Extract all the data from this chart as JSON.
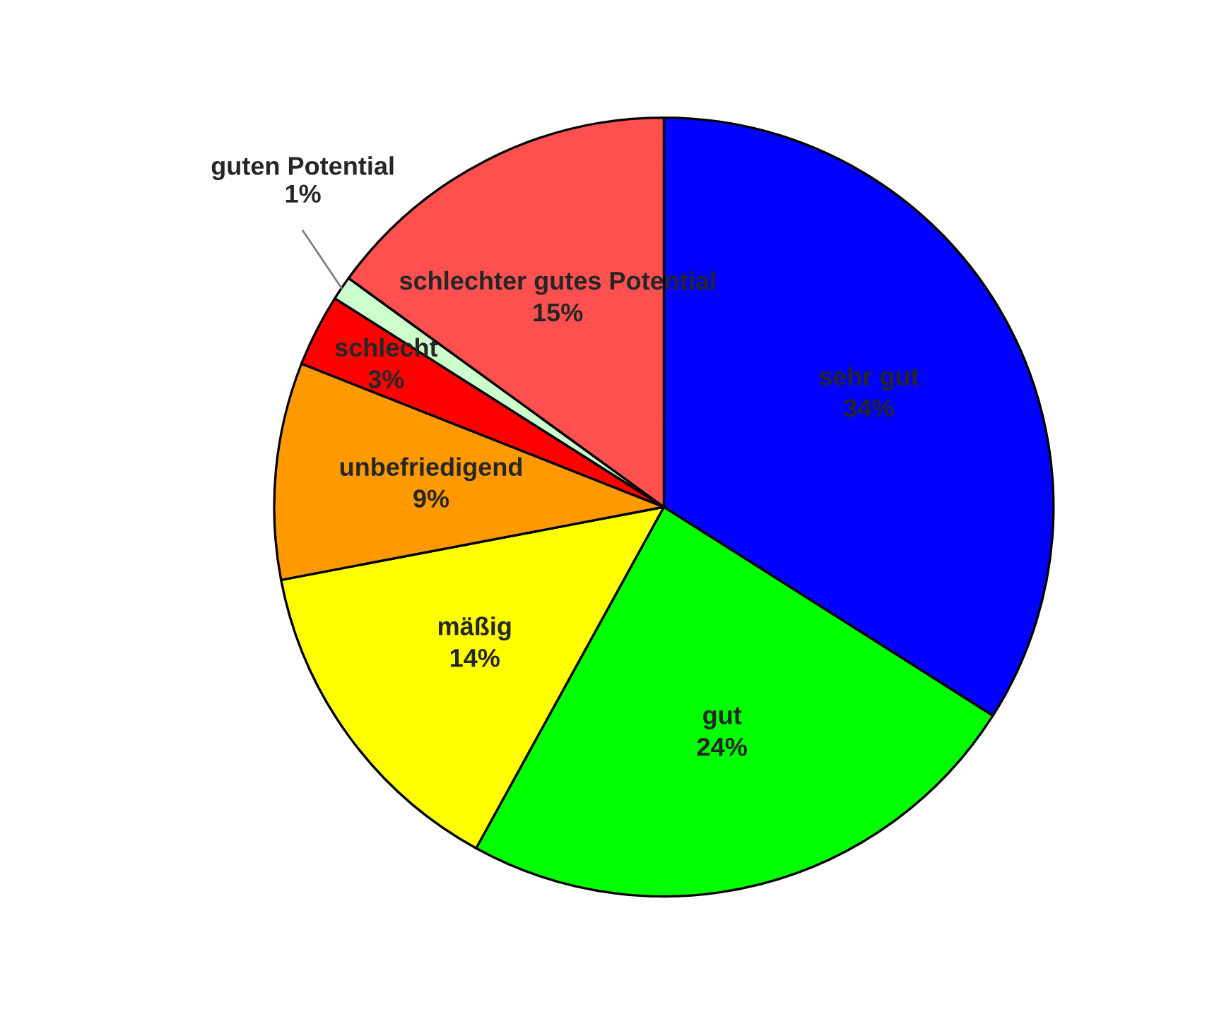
{
  "chart_data": {
    "type": "pie",
    "categories": [
      "sehr gut",
      "gut",
      "mäßig",
      "unbefriedigend",
      "schlecht",
      "guten Potential",
      "schlechter gutes Potential"
    ],
    "values": [
      34,
      24,
      14,
      9,
      3,
      1,
      15
    ],
    "colors": [
      "#0000ff",
      "#00ff00",
      "#ffff00",
      "#ff9900",
      "#ff0000",
      "#ccffcc",
      "#ff5050"
    ],
    "value_labels": [
      "34%",
      "24%",
      "14%",
      "9%",
      "3%",
      "1%",
      "15%"
    ],
    "legend": false
  }
}
